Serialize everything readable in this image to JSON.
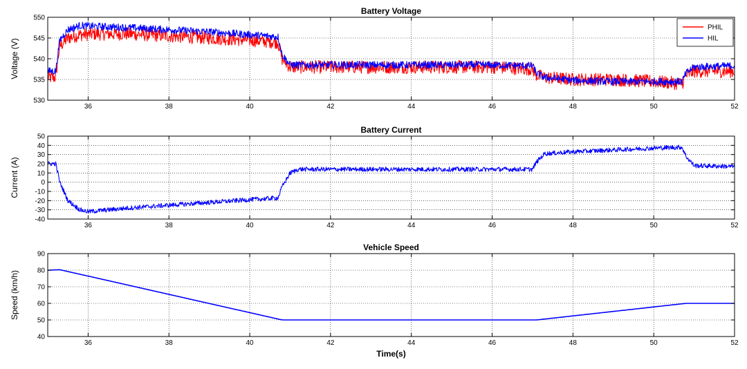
{
  "figure": {
    "xlabel": "Time(s)"
  },
  "chart_data": [
    {
      "type": "line",
      "title": "Battery Voltage",
      "xlabel": "",
      "ylabel": "Voltage (V)",
      "xlim": [
        35,
        52
      ],
      "ylim": [
        530,
        550
      ],
      "xticks": [
        36,
        38,
        40,
        42,
        44,
        46,
        48,
        50,
        52
      ],
      "yticks": [
        530,
        535,
        540,
        545,
        550
      ],
      "grid": true,
      "legend": {
        "position": "top-right",
        "entries": [
          "PHIL",
          "HIL"
        ]
      },
      "series": [
        {
          "name": "PHIL",
          "color": "#ff0000",
          "noise": 1.6,
          "x": [
            35.0,
            35.2,
            35.25,
            35.3,
            35.5,
            35.8,
            36.2,
            37.0,
            38.0,
            39.0,
            40.0,
            40.7,
            40.8,
            41.0,
            42.0,
            44.0,
            46.0,
            47.0,
            47.1,
            47.3,
            48.0,
            49.0,
            50.0,
            50.7,
            50.8,
            51.0,
            52.0
          ],
          "y": [
            535.5,
            535.5,
            540,
            543,
            545,
            545.8,
            546,
            546,
            545.5,
            545,
            544.5,
            544,
            540,
            538,
            538,
            538,
            538,
            537.5,
            536,
            535.5,
            535,
            535,
            534.5,
            534,
            536,
            537,
            537
          ]
        },
        {
          "name": "HIL",
          "color": "#0000ff",
          "noise": 0.9,
          "x": [
            35.0,
            35.2,
            35.25,
            35.3,
            35.5,
            35.8,
            36.2,
            37.0,
            38.0,
            39.0,
            40.0,
            40.7,
            40.8,
            41.0,
            42.0,
            44.0,
            46.0,
            47.0,
            47.1,
            47.3,
            48.0,
            49.0,
            50.0,
            50.7,
            50.8,
            51.0,
            52.0
          ],
          "y": [
            537,
            537,
            541,
            544.5,
            547,
            548,
            547.8,
            547.5,
            547,
            546.5,
            545.8,
            545.3,
            541,
            538.5,
            538.5,
            538.5,
            538.5,
            538.3,
            536.5,
            535.5,
            534.8,
            534.5,
            534.5,
            534.5,
            536.5,
            538,
            538.3
          ]
        }
      ]
    },
    {
      "type": "line",
      "title": "Battery Current",
      "xlabel": "",
      "ylabel": "Current (A)",
      "xlim": [
        35,
        52
      ],
      "ylim": [
        -40,
        50
      ],
      "xticks": [
        36,
        38,
        40,
        42,
        44,
        46,
        48,
        50,
        52
      ],
      "yticks": [
        -40,
        -30,
        -20,
        -10,
        0,
        10,
        20,
        30,
        40,
        50
      ],
      "grid": true,
      "series": [
        {
          "name": "",
          "color": "#0000ff",
          "noise": 2.5,
          "x": [
            35.0,
            35.2,
            35.3,
            35.5,
            35.8,
            36.0,
            36.5,
            37.0,
            38.0,
            39.0,
            40.0,
            40.7,
            40.8,
            41.0,
            41.2,
            42.0,
            44.0,
            46.0,
            47.0,
            47.1,
            47.3,
            48.0,
            49.0,
            50.0,
            50.7,
            50.8,
            51.0,
            52.0
          ],
          "y": [
            20,
            20,
            0,
            -20,
            -30,
            -32,
            -30,
            -28,
            -25,
            -22,
            -19,
            -17,
            -5,
            10,
            14,
            14,
            14,
            14,
            14,
            22,
            31,
            33,
            35,
            37,
            38,
            28,
            18,
            17
          ]
        }
      ]
    },
    {
      "type": "line",
      "title": "Vehicle Speed",
      "xlabel": "Time(s)",
      "ylabel": "Speed (km/h)",
      "xlim": [
        35,
        52
      ],
      "ylim": [
        40,
        90
      ],
      "xticks": [
        36,
        38,
        40,
        42,
        44,
        46,
        48,
        50,
        52
      ],
      "yticks": [
        40,
        50,
        60,
        70,
        80,
        90
      ],
      "grid": true,
      "series": [
        {
          "name": "",
          "color": "#0000ff",
          "noise": 0,
          "x": [
            35.0,
            35.3,
            40.8,
            47.1,
            50.8,
            52.0
          ],
          "y": [
            80,
            80.3,
            50,
            50,
            60,
            60
          ]
        }
      ]
    }
  ]
}
